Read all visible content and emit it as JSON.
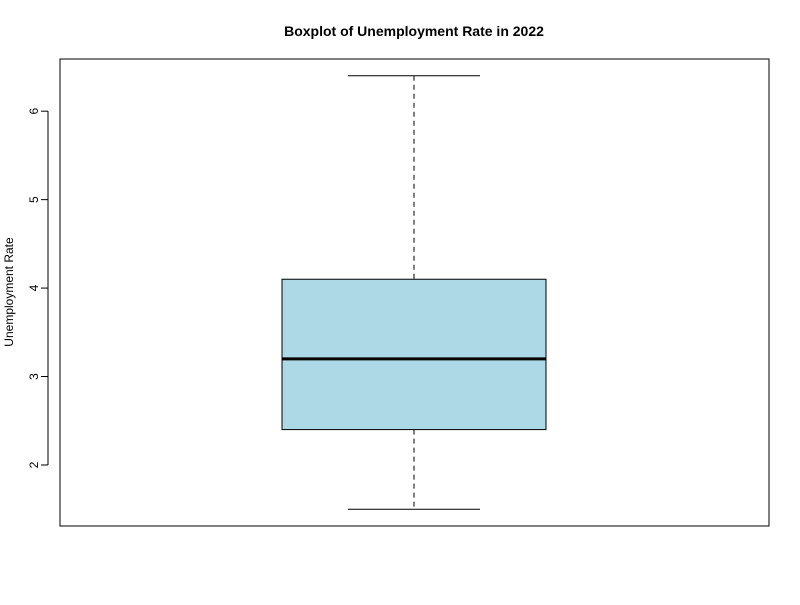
{
  "chart_data": {
    "type": "boxplot",
    "title": "Boxplot of Unemployment Rate in 2022",
    "xlabel": "",
    "ylabel": "Unemployment Rate",
    "ylim": [
      1.31,
      6.59
    ],
    "yticks": [
      2,
      3,
      4,
      5,
      6
    ],
    "grid": false,
    "box": {
      "min": 1.5,
      "q1": 2.4,
      "median": 3.2,
      "q3": 4.1,
      "max": 6.4
    },
    "colors": {
      "box_fill": "#add8e6",
      "stroke": "#000000"
    }
  }
}
